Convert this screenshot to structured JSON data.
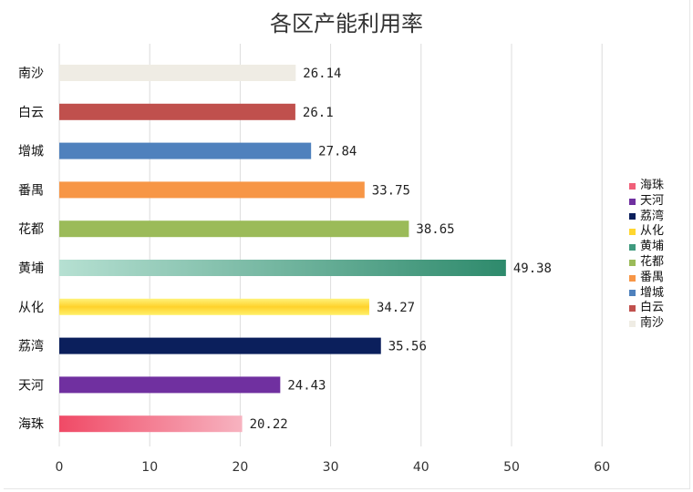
{
  "chart_data": {
    "type": "bar",
    "orientation": "horizontal",
    "title": "各区产能利用率",
    "categories": [
      "南沙",
      "白云",
      "增城",
      "番禺",
      "花都",
      "黄埔",
      "从化",
      "荔湾",
      "天河",
      "海珠"
    ],
    "values": [
      26.14,
      26.1,
      27.84,
      33.75,
      38.65,
      49.38,
      34.27,
      35.56,
      24.43,
      20.22
    ],
    "value_labels": [
      "26.14",
      "26.1",
      "27.84",
      "33.75",
      "38.65",
      "49.38",
      "34.27",
      "35.56",
      "24.43",
      "20.22"
    ],
    "colors": [
      "#efece4",
      "#c0504d",
      "#4f81bd",
      "#f79646",
      "#9bbb59",
      "#3f9a7e",
      "#ffd630",
      "#0b1f5c",
      "#7030a0",
      "#f06079"
    ],
    "xlim": [
      0,
      60
    ],
    "xticks": [
      0,
      10,
      20,
      30,
      40,
      50,
      60
    ],
    "grid": true,
    "legend": {
      "position": "right",
      "entries": [
        "海珠",
        "天河",
        "荔湾",
        "从化",
        "黄埔",
        "花都",
        "番禺",
        "增城",
        "白云",
        "南沙"
      ],
      "colors": [
        "#f06079",
        "#7030a0",
        "#0b1f5c",
        "#ffd630",
        "#3f9a7e",
        "#9bbb59",
        "#f79646",
        "#4f81bd",
        "#c0504d",
        "#efece4"
      ]
    }
  }
}
